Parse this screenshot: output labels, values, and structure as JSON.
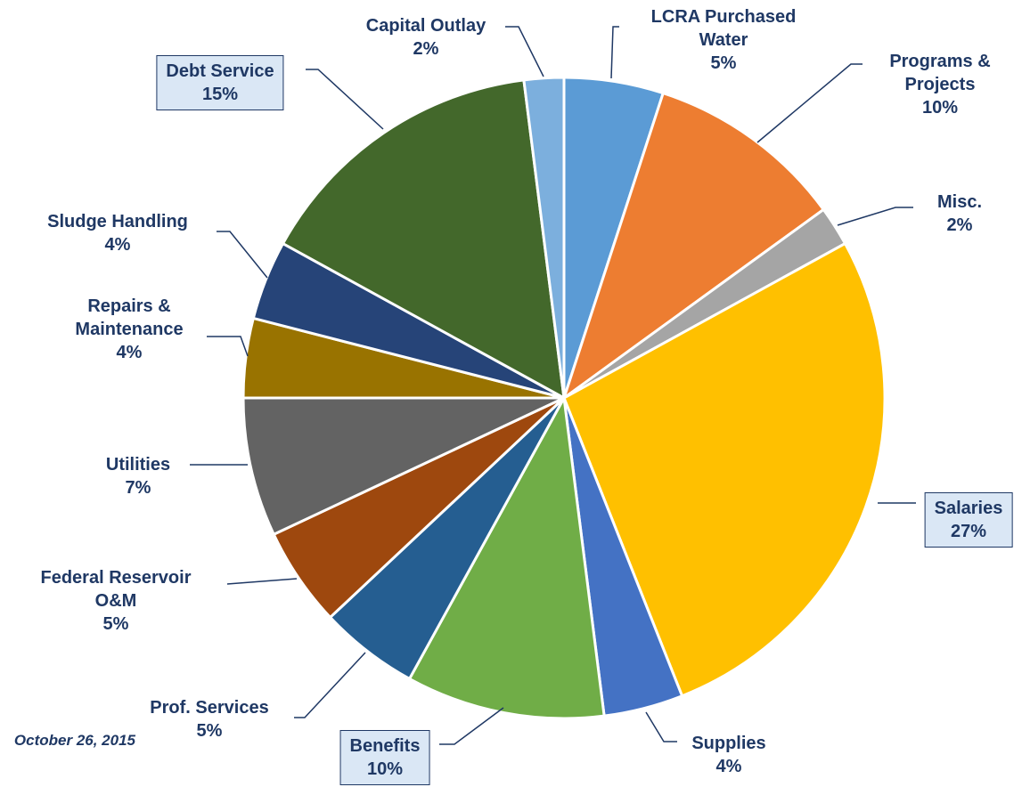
{
  "chart_data": {
    "type": "pie",
    "categories": [
      "LCRA Purchased Water",
      "Programs & Projects",
      "Misc.",
      "Salaries",
      "Supplies",
      "Benefits",
      "Prof. Services",
      "Federal Reservoir O&M",
      "Utilities",
      "Repairs & Maintenance",
      "Sludge Handling",
      "Debt Service",
      "Capital Outlay"
    ],
    "values": [
      5,
      10,
      2,
      27,
      4,
      10,
      5,
      5,
      7,
      4,
      4,
      15,
      2
    ],
    "value_labels": [
      "5%",
      "10%",
      "2%",
      "27%",
      "4%",
      "10%",
      "5%",
      "5%",
      "7%",
      "4%",
      "4%",
      "15%",
      "2%"
    ],
    "colors": [
      "#5b9bd5",
      "#ed7d31",
      "#a5a5a5",
      "#ffc000",
      "#4472c4",
      "#70ad47",
      "#255e91",
      "#9e480e",
      "#636363",
      "#997300",
      "#264478",
      "#43682b",
      "#7cafdd"
    ],
    "boxed_labels": [
      3,
      5,
      11
    ],
    "footnote": "October 26, 2015"
  }
}
